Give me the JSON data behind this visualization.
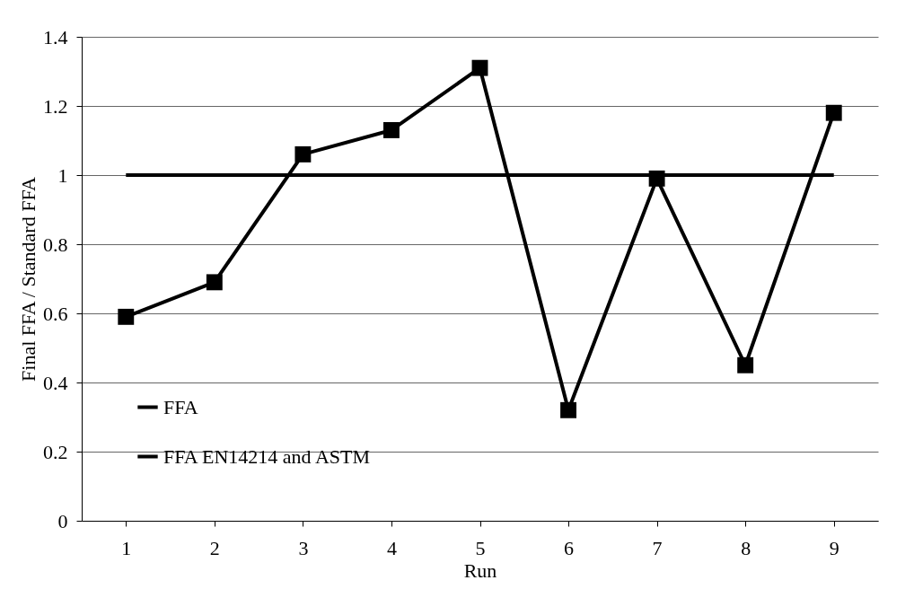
{
  "chart_data": {
    "type": "line",
    "xlabel": "Run",
    "ylabel": "Final FFA / Standard FFA",
    "categories": [
      "1",
      "2",
      "3",
      "4",
      "5",
      "6",
      "7",
      "8",
      "9"
    ],
    "series": [
      {
        "name": "FFA",
        "color": "#000000",
        "marker": "square",
        "values": [
          0.59,
          0.69,
          1.06,
          1.13,
          1.31,
          0.32,
          0.99,
          0.45,
          1.18
        ]
      },
      {
        "name": "FFA EN14214 and ASTM",
        "color": "#000000",
        "marker": "none",
        "values": [
          1,
          1,
          1,
          1,
          1,
          1,
          1,
          1,
          1
        ]
      }
    ],
    "ylim": [
      0,
      1.4
    ],
    "yticks": [
      0,
      0.2,
      0.4,
      0.6,
      0.8,
      1,
      1.2,
      1.4
    ],
    "grid": "y",
    "legend": "bottom left",
    "line_style": "solid"
  }
}
